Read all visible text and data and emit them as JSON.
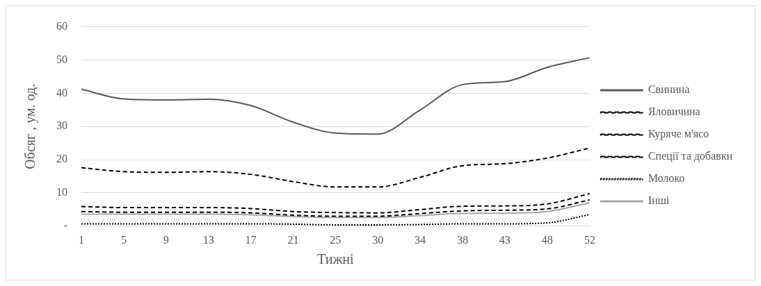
{
  "chart_data": {
    "type": "line",
    "xlabel": "Тижні",
    "ylabel": "Обсяг , ум. од.",
    "categories": [
      "1",
      "5",
      "9",
      "13",
      "17",
      "21",
      "25",
      "30",
      "34",
      "38",
      "43",
      "48",
      "52"
    ],
    "ylim": [
      0,
      60
    ],
    "yticks": [
      {
        "value": 0,
        "label": "-"
      },
      10,
      20,
      30,
      40,
      50,
      60
    ],
    "grid": "y",
    "legend": "right",
    "marker": "none",
    "series": [
      {
        "name": "Свинина",
        "color": "#595959",
        "line_style": "solid",
        "values": [
          41.2,
          38.3,
          38,
          38.2,
          36.3,
          31.3,
          28,
          27.7,
          35,
          42.6,
          43.5,
          47.8,
          50.7
        ]
      },
      {
        "name": "Яловичина",
        "color": "#000000",
        "line_style": "dashed",
        "values": [
          17.6,
          16.4,
          16.2,
          16.4,
          15.6,
          13.4,
          11.8,
          11.8,
          14.7,
          18.2,
          18.8,
          20.5,
          23.5
        ]
      },
      {
        "name": "Куряче м'ясо",
        "color": "#000000",
        "line_style": "dashed",
        "values": [
          4.4,
          4.2,
          4.2,
          4.2,
          4,
          3.3,
          3,
          3,
          3.8,
          4.6,
          4.8,
          5.2,
          7.9
        ]
      },
      {
        "name": "Спеції та добавки",
        "color": "#000000",
        "line_style": "dashed",
        "values": [
          5.9,
          5.6,
          5.6,
          5.6,
          5.3,
          4.4,
          4.1,
          4,
          5,
          6,
          6.1,
          6.7,
          9.8
        ]
      },
      {
        "name": "Молоко",
        "color": "#000000",
        "line_style": "dotted",
        "values": [
          0.7,
          0.7,
          0.7,
          0.7,
          0.7,
          0.6,
          0.4,
          0.4,
          0.5,
          0.7,
          0.7,
          1,
          3.5
        ]
      },
      {
        "name": "Інші",
        "color": "#a6a6a6",
        "line_style": "solid",
        "values": [
          3.6,
          3.6,
          3.6,
          3.6,
          3.4,
          2.9,
          2.6,
          2.6,
          3.2,
          3.8,
          3.9,
          4.4,
          7
        ]
      }
    ]
  }
}
